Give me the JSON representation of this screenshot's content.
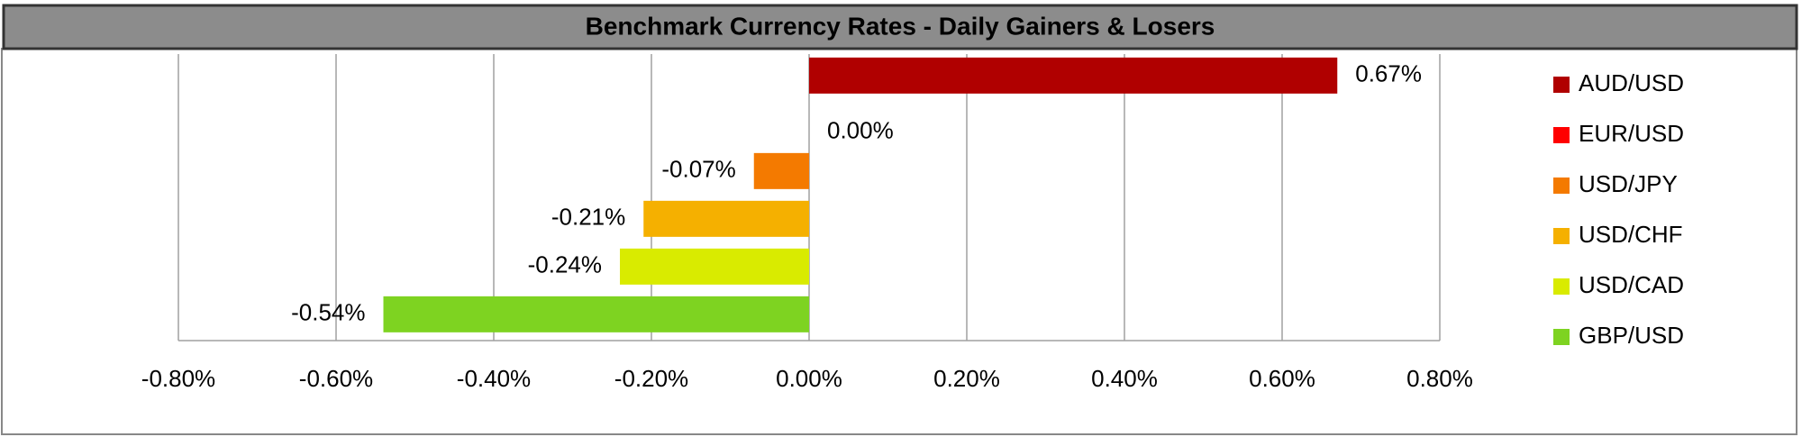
{
  "chart_data": {
    "type": "bar",
    "orientation": "horizontal",
    "title": "Benchmark Currency Rates - Daily Gainers & Losers",
    "categories": [
      "AUD/USD",
      "EUR/USD",
      "USD/JPY",
      "USD/CHF",
      "USD/CAD",
      "GBP/USD"
    ],
    "values": [
      0.67,
      0.0,
      -0.07,
      -0.21,
      -0.24,
      -0.54
    ],
    "value_labels": [
      "0.67%",
      "0.00%",
      "-0.07%",
      "-0.21%",
      "-0.24%",
      "-0.54%"
    ],
    "colors": [
      "#b00000",
      "#ff0000",
      "#f47a00",
      "#f5b000",
      "#d9eb00",
      "#7ed321"
    ],
    "xlim": [
      -0.8,
      0.8
    ],
    "xticks": [
      {
        "value": -0.8,
        "label": "-0.80%"
      },
      {
        "value": -0.6,
        "label": "-0.60%"
      },
      {
        "value": -0.4,
        "label": "-0.40%"
      },
      {
        "value": -0.2,
        "label": "-0.20%"
      },
      {
        "value": 0,
        "label": "0.00%"
      },
      {
        "value": 0.2,
        "label": "0.20%"
      },
      {
        "value": 0.4,
        "label": "0.40%"
      },
      {
        "value": 0.6,
        "label": "0.60%"
      },
      {
        "value": 0.8,
        "label": "0.80%"
      }
    ],
    "grid": true,
    "legend": "right"
  }
}
